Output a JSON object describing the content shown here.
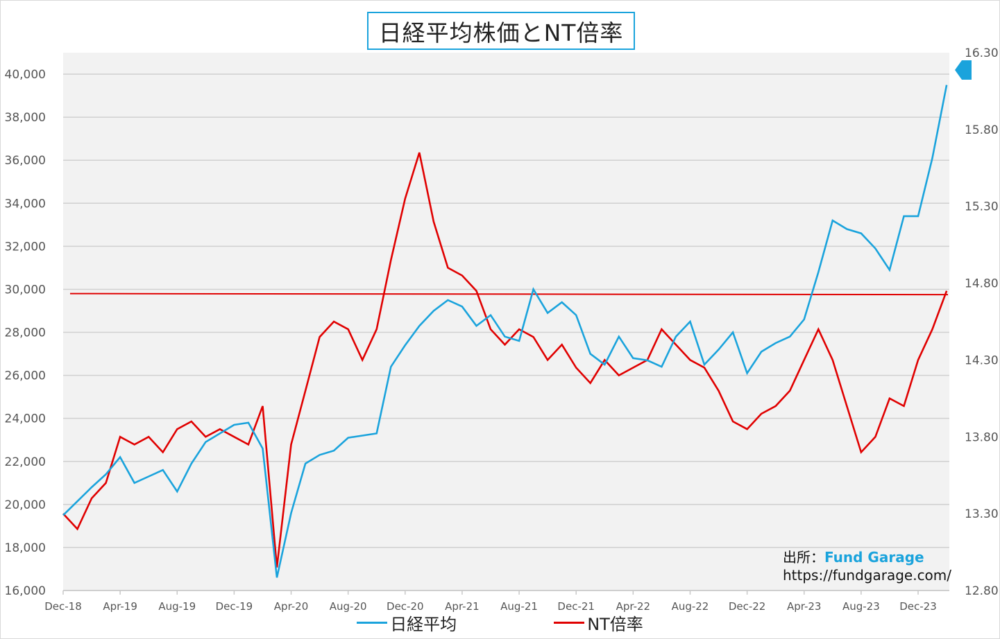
{
  "chart_data": {
    "type": "line",
    "title": "日経平均株価とNT倍率",
    "x_ticks": [
      "Dec-18",
      "Apr-19",
      "Aug-19",
      "Dec-19",
      "Apr-20",
      "Aug-20",
      "Dec-20",
      "Apr-21",
      "Aug-21",
      "Dec-21",
      "Apr-22",
      "Aug-22",
      "Dec-22",
      "Apr-23",
      "Aug-23",
      "Dec-23"
    ],
    "y_left": {
      "min": 16000,
      "max": 41000,
      "ticks": [
        "16,000",
        "18,000",
        "20,000",
        "22,000",
        "24,000",
        "26,000",
        "28,000",
        "30,000",
        "32,000",
        "34,000",
        "36,000",
        "38,000",
        "40,000"
      ]
    },
    "y_right": {
      "min": 12.8,
      "max": 16.3,
      "ticks": [
        "12.80",
        "13.30",
        "13.80",
        "14.30",
        "14.80",
        "15.30",
        "15.80",
        "16.30"
      ]
    },
    "grid": true,
    "legend_position": "bottom",
    "series": [
      {
        "name": "日経平均",
        "axis": "left",
        "color": "#1aa3dc",
        "x": [
          "2018-12",
          "2019-02",
          "2019-03",
          "2019-04",
          "2019-05",
          "2019-06",
          "2019-07",
          "2019-08",
          "2019-09",
          "2019-10",
          "2019-11",
          "2019-12",
          "2020-01",
          "2020-02",
          "2020-03",
          "2020-04",
          "2020-05",
          "2020-06",
          "2020-07",
          "2020-08",
          "2020-09",
          "2020-10",
          "2020-11",
          "2020-12",
          "2021-01",
          "2021-02",
          "2021-03",
          "2021-04",
          "2021-05",
          "2021-06",
          "2021-07",
          "2021-08",
          "2021-09",
          "2021-10",
          "2021-11",
          "2021-12",
          "2022-01",
          "2022-02",
          "2022-03",
          "2022-04",
          "2022-05",
          "2022-06",
          "2022-07",
          "2022-08",
          "2022-09",
          "2022-10",
          "2022-11",
          "2022-12",
          "2023-01",
          "2023-02",
          "2023-03",
          "2023-04",
          "2023-05",
          "2023-06",
          "2023-07",
          "2023-08",
          "2023-09",
          "2023-10",
          "2023-11",
          "2023-12",
          "2024-01",
          "2024-02"
        ],
        "y": [
          19500,
          20800,
          21400,
          22200,
          21000,
          21300,
          21600,
          20600,
          21900,
          22900,
          23300,
          23700,
          23800,
          22600,
          16600,
          19600,
          21900,
          22300,
          22500,
          23100,
          23200,
          23300,
          26400,
          27400,
          28300,
          29000,
          29500,
          29200,
          28300,
          28800,
          27800,
          27600,
          30000,
          28900,
          29400,
          28800,
          27000,
          26500,
          27800,
          26800,
          26700,
          26400,
          27800,
          28500,
          26500,
          27200,
          28000,
          26100,
          27100,
          27500,
          27800,
          28600,
          30800,
          33200,
          32800,
          32600,
          31900,
          30900,
          33400,
          33400,
          36100,
          39500
        ]
      },
      {
        "name": "NT倍率",
        "axis": "right",
        "color": "#e00000",
        "x": [
          "2018-12",
          "2019-01",
          "2019-02",
          "2019-03",
          "2019-04",
          "2019-05",
          "2019-06",
          "2019-07",
          "2019-08",
          "2019-09",
          "2019-10",
          "2019-11",
          "2019-12",
          "2020-01",
          "2020-02",
          "2020-03",
          "2020-04",
          "2020-05",
          "2020-06",
          "2020-07",
          "2020-08",
          "2020-09",
          "2020-10",
          "2020-11",
          "2020-12",
          "2021-01",
          "2021-02",
          "2021-03",
          "2021-04",
          "2021-05",
          "2021-06",
          "2021-07",
          "2021-08",
          "2021-09",
          "2021-10",
          "2021-11",
          "2021-12",
          "2022-01",
          "2022-02",
          "2022-03",
          "2022-04",
          "2022-05",
          "2022-06",
          "2022-07",
          "2022-08",
          "2022-09",
          "2022-10",
          "2022-11",
          "2022-12",
          "2023-01",
          "2023-02",
          "2023-03",
          "2023-04",
          "2023-05",
          "2023-06",
          "2023-07",
          "2023-08",
          "2023-09",
          "2023-10",
          "2023-11",
          "2023-12",
          "2024-01",
          "2024-02"
        ],
        "y": [
          13.3,
          13.2,
          13.4,
          13.5,
          13.8,
          13.75,
          13.8,
          13.7,
          13.85,
          13.9,
          13.8,
          13.85,
          13.8,
          13.75,
          14.0,
          12.95,
          13.75,
          14.1,
          14.45,
          14.55,
          14.5,
          14.3,
          14.5,
          14.95,
          15.35,
          15.65,
          15.2,
          14.9,
          14.85,
          14.75,
          14.5,
          14.4,
          14.5,
          14.45,
          14.3,
          14.4,
          14.25,
          14.15,
          14.3,
          14.2,
          14.25,
          14.3,
          14.5,
          14.4,
          14.3,
          14.25,
          14.1,
          13.9,
          13.85,
          13.95,
          14.0,
          14.1,
          14.3,
          14.5,
          14.3,
          14.0,
          13.7,
          13.8,
          14.05,
          14.0,
          14.3,
          14.5,
          14.75
        ]
      }
    ],
    "reference_line": {
      "axis": "left",
      "value": 29800,
      "color": "#e00000"
    }
  },
  "source": {
    "label": "出所：",
    "brand": "Fund Garage",
    "url": "https://fundgarage.com/"
  },
  "marker": {
    "color": "#1aa3dc",
    "icon": "blue-pointer-marker"
  }
}
